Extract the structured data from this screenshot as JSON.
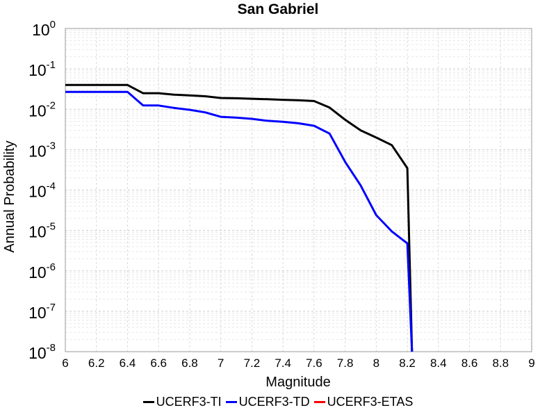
{
  "chart_data": {
    "type": "line",
    "title": "San Gabriel",
    "xlabel": "Magnitude",
    "ylabel": "Annual Probability",
    "xlim": [
      6,
      9
    ],
    "ylim_exponent": [
      -8,
      0
    ],
    "y_scale": "log",
    "grid": true,
    "legend_position": "bottom",
    "x_ticks": [
      "6",
      "6.2",
      "6.4",
      "6.6",
      "6.8",
      "7",
      "7.2",
      "7.4",
      "7.6",
      "7.8",
      "8",
      "8.2",
      "8.4",
      "8.6",
      "8.8",
      "9"
    ],
    "y_tick_base": "10",
    "y_tick_exponents": [
      "-8",
      "-7",
      "-6",
      "-5",
      "-4",
      "-3",
      "-2",
      "-1",
      "0"
    ],
    "series": [
      {
        "name": "UCERF3-TI",
        "color": "#000000",
        "x": [
          6.0,
          6.1,
          6.2,
          6.3,
          6.4,
          6.5,
          6.6,
          6.7,
          6.8,
          6.9,
          7.0,
          7.1,
          7.2,
          7.3,
          7.4,
          7.5,
          7.6,
          7.7,
          7.8,
          7.9,
          8.0,
          8.1,
          8.2,
          8.23
        ],
        "y": [
          0.04,
          0.04,
          0.04,
          0.04,
          0.04,
          0.025,
          0.025,
          0.023,
          0.022,
          0.021,
          0.019,
          0.0187,
          0.0182,
          0.0177,
          0.0172,
          0.0168,
          0.016,
          0.011,
          0.0055,
          0.003,
          0.002,
          0.0013,
          0.00035,
          1e-08
        ]
      },
      {
        "name": "UCERF3-TD",
        "color": "#0000ff",
        "x": [
          6.0,
          6.1,
          6.2,
          6.3,
          6.4,
          6.5,
          6.6,
          6.7,
          6.8,
          6.9,
          7.0,
          7.1,
          7.2,
          7.3,
          7.4,
          7.5,
          7.6,
          7.7,
          7.8,
          7.9,
          8.0,
          8.1,
          8.2,
          8.23
        ],
        "y": [
          0.027,
          0.027,
          0.027,
          0.027,
          0.027,
          0.0125,
          0.0124,
          0.0108,
          0.0097,
          0.0084,
          0.0065,
          0.0062,
          0.0058,
          0.0052,
          0.0049,
          0.0045,
          0.0039,
          0.0025,
          0.0005,
          0.00013,
          2.4e-05,
          9.5e-06,
          4.8e-06,
          1e-08
        ]
      },
      {
        "name": "UCERF3-ETAS",
        "color": "#ff0000",
        "x": [],
        "y": []
      }
    ]
  }
}
